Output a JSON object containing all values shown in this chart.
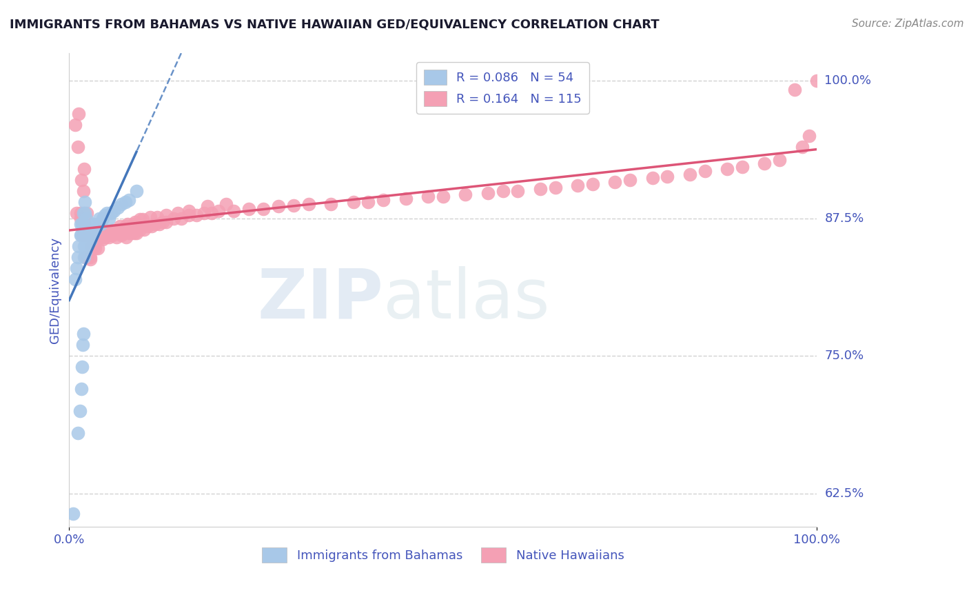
{
  "title": "IMMIGRANTS FROM BAHAMAS VS NATIVE HAWAIIAN GED/EQUIVALENCY CORRELATION CHART",
  "source": "Source: ZipAtlas.com",
  "ylabel": "GED/Equivalency",
  "xlim": [
    0.0,
    1.0
  ],
  "ylim": [
    0.595,
    1.025
  ],
  "yticks": [
    0.625,
    0.75,
    0.875,
    1.0
  ],
  "ytick_labels": [
    "62.5%",
    "75.0%",
    "87.5%",
    "100.0%"
  ],
  "blue_R": 0.086,
  "blue_N": 54,
  "pink_R": 0.164,
  "pink_N": 115,
  "blue_color": "#a8c8e8",
  "pink_color": "#f4a0b4",
  "blue_trend_color": "#4477bb",
  "pink_trend_color": "#dd5577",
  "blue_label": "Immigrants from Bahamas",
  "pink_label": "Native Hawaiians",
  "axis_color": "#4455bb",
  "background_color": "#ffffff",
  "blue_scatter_x": [
    0.005,
    0.008,
    0.01,
    0.012,
    0.012,
    0.013,
    0.014,
    0.015,
    0.015,
    0.016,
    0.016,
    0.017,
    0.017,
    0.018,
    0.018,
    0.019,
    0.019,
    0.02,
    0.02,
    0.02,
    0.02,
    0.021,
    0.021,
    0.022,
    0.022,
    0.023,
    0.023,
    0.024,
    0.024,
    0.025,
    0.025,
    0.026,
    0.027,
    0.028,
    0.029,
    0.03,
    0.031,
    0.032,
    0.033,
    0.035,
    0.038,
    0.04,
    0.042,
    0.045,
    0.048,
    0.05,
    0.053,
    0.056,
    0.06,
    0.065,
    0.07,
    0.075,
    0.08,
    0.09
  ],
  "blue_scatter_y": [
    0.607,
    0.82,
    0.83,
    0.68,
    0.84,
    0.85,
    0.7,
    0.86,
    0.87,
    0.72,
    0.86,
    0.74,
    0.87,
    0.76,
    0.87,
    0.77,
    0.88,
    0.84,
    0.85,
    0.86,
    0.87,
    0.88,
    0.89,
    0.845,
    0.855,
    0.865,
    0.875,
    0.85,
    0.86,
    0.855,
    0.865,
    0.86,
    0.865,
    0.855,
    0.86,
    0.865,
    0.86,
    0.865,
    0.87,
    0.865,
    0.87,
    0.875,
    0.87,
    0.875,
    0.878,
    0.88,
    0.875,
    0.88,
    0.882,
    0.885,
    0.888,
    0.89,
    0.892,
    0.9
  ],
  "pink_scatter_x": [
    0.008,
    0.01,
    0.012,
    0.013,
    0.015,
    0.016,
    0.018,
    0.019,
    0.02,
    0.022,
    0.023,
    0.024,
    0.025,
    0.026,
    0.028,
    0.03,
    0.032,
    0.033,
    0.035,
    0.036,
    0.038,
    0.04,
    0.042,
    0.044,
    0.046,
    0.048,
    0.05,
    0.053,
    0.056,
    0.058,
    0.06,
    0.063,
    0.066,
    0.07,
    0.073,
    0.076,
    0.08,
    0.084,
    0.087,
    0.09,
    0.095,
    0.1,
    0.105,
    0.11,
    0.115,
    0.12,
    0.125,
    0.13,
    0.14,
    0.15,
    0.16,
    0.17,
    0.18,
    0.19,
    0.2,
    0.22,
    0.24,
    0.26,
    0.28,
    0.3,
    0.32,
    0.35,
    0.38,
    0.4,
    0.42,
    0.45,
    0.48,
    0.5,
    0.53,
    0.56,
    0.58,
    0.6,
    0.63,
    0.65,
    0.68,
    0.7,
    0.73,
    0.75,
    0.78,
    0.8,
    0.83,
    0.85,
    0.88,
    0.9,
    0.93,
    0.95,
    0.97,
    0.98,
    0.99,
    1.0,
    0.025,
    0.035,
    0.045,
    0.055,
    0.065,
    0.075,
    0.085,
    0.095,
    0.015,
    0.02,
    0.028,
    0.038,
    0.048,
    0.058,
    0.068,
    0.078,
    0.088,
    0.098,
    0.108,
    0.118,
    0.13,
    0.145,
    0.16,
    0.185,
    0.21
  ],
  "pink_scatter_y": [
    0.96,
    0.88,
    0.94,
    0.97,
    0.88,
    0.91,
    0.86,
    0.9,
    0.92,
    0.84,
    0.86,
    0.88,
    0.84,
    0.86,
    0.84,
    0.85,
    0.86,
    0.85,
    0.86,
    0.855,
    0.858,
    0.862,
    0.858,
    0.862,
    0.858,
    0.862,
    0.86,
    0.858,
    0.862,
    0.86,
    0.862,
    0.858,
    0.862,
    0.86,
    0.862,
    0.858,
    0.862,
    0.862,
    0.862,
    0.862,
    0.865,
    0.865,
    0.868,
    0.868,
    0.87,
    0.87,
    0.872,
    0.872,
    0.875,
    0.875,
    0.878,
    0.878,
    0.88,
    0.88,
    0.882,
    0.882,
    0.884,
    0.884,
    0.886,
    0.887,
    0.888,
    0.888,
    0.89,
    0.89,
    0.892,
    0.893,
    0.895,
    0.895,
    0.897,
    0.898,
    0.9,
    0.9,
    0.902,
    0.903,
    0.905,
    0.906,
    0.908,
    0.91,
    0.912,
    0.913,
    0.915,
    0.918,
    0.92,
    0.922,
    0.925,
    0.928,
    0.992,
    0.94,
    0.95,
    1.0,
    0.84,
    0.848,
    0.856,
    0.86,
    0.864,
    0.868,
    0.87,
    0.874,
    0.875,
    0.872,
    0.838,
    0.848,
    0.858,
    0.864,
    0.868,
    0.87,
    0.872,
    0.874,
    0.876,
    0.876,
    0.878,
    0.88,
    0.882,
    0.886,
    0.888
  ]
}
